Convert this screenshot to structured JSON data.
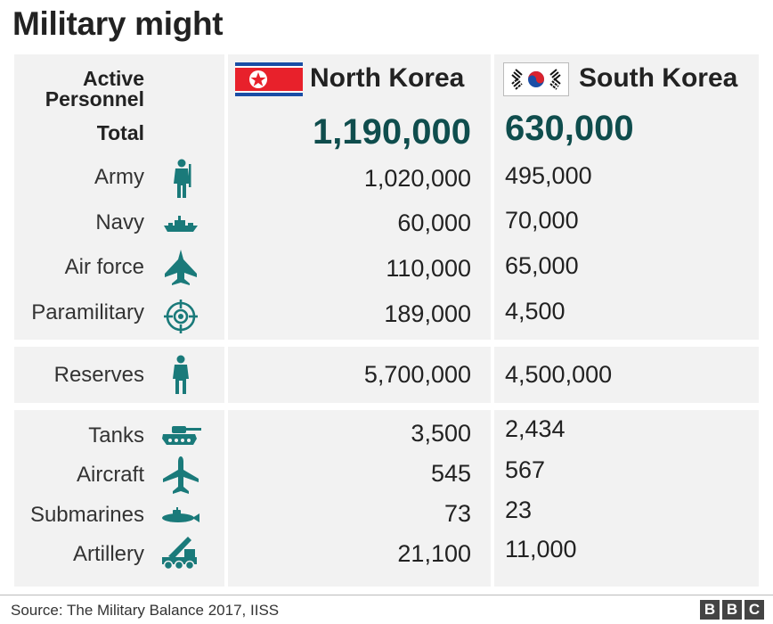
{
  "title": "Military might",
  "columns": {
    "label_header": [
      "Active",
      "Personnel"
    ],
    "north": "North Korea",
    "south": "South Korea"
  },
  "rows": [
    {
      "label": "Total",
      "north": "1,190,000",
      "south": "630,000",
      "icon": null
    },
    {
      "label": "Army",
      "north": "1,020,000",
      "south": "495,000",
      "icon": "soldier-icon"
    },
    {
      "label": "Navy",
      "north": "60,000",
      "south": "70,000",
      "icon": "ship-icon"
    },
    {
      "label": "Air force",
      "north": "110,000",
      "south": "65,000",
      "icon": "fighter-jet-icon"
    },
    {
      "label": "Paramilitary",
      "north": "189,000",
      "south": "4,500",
      "icon": "crosshair-icon"
    },
    {
      "label": "Reserves",
      "north": "5,700,000",
      "south": "4,500,000",
      "icon": "person-icon"
    },
    {
      "label": "Tanks",
      "north": "3,500",
      "south": "2,434",
      "icon": "tank-icon"
    },
    {
      "label": "Aircraft",
      "north": "545",
      "south": "567",
      "icon": "airplane-icon"
    },
    {
      "label": "Submarines",
      "north": "73",
      "south": "23",
      "icon": "submarine-icon"
    },
    {
      "label": "Artillery",
      "north": "21,100",
      "south": "11,000",
      "icon": "artillery-icon"
    }
  ],
  "chart_data": {
    "type": "table",
    "title": "Military might",
    "columns": [
      "Active Personnel",
      "North Korea",
      "South Korea"
    ],
    "rows": [
      [
        "Total",
        1190000,
        630000
      ],
      [
        "Army",
        1020000,
        495000
      ],
      [
        "Navy",
        60000,
        70000
      ],
      [
        "Air force",
        110000,
        65000
      ],
      [
        "Paramilitary",
        189000,
        4500
      ],
      [
        "Reserves",
        5700000,
        4500000
      ],
      [
        "Tanks",
        3500,
        2434
      ],
      [
        "Aircraft",
        545,
        567
      ],
      [
        "Submarines",
        73,
        23
      ],
      [
        "Artillery",
        21100,
        11000
      ]
    ]
  },
  "colors": {
    "icon": "#1a7a7a",
    "total": "#0f4d4d",
    "panel": "#f2f2f2"
  },
  "source": "Source: The Military Balance 2017, IISS",
  "brand": [
    "B",
    "B",
    "C"
  ]
}
